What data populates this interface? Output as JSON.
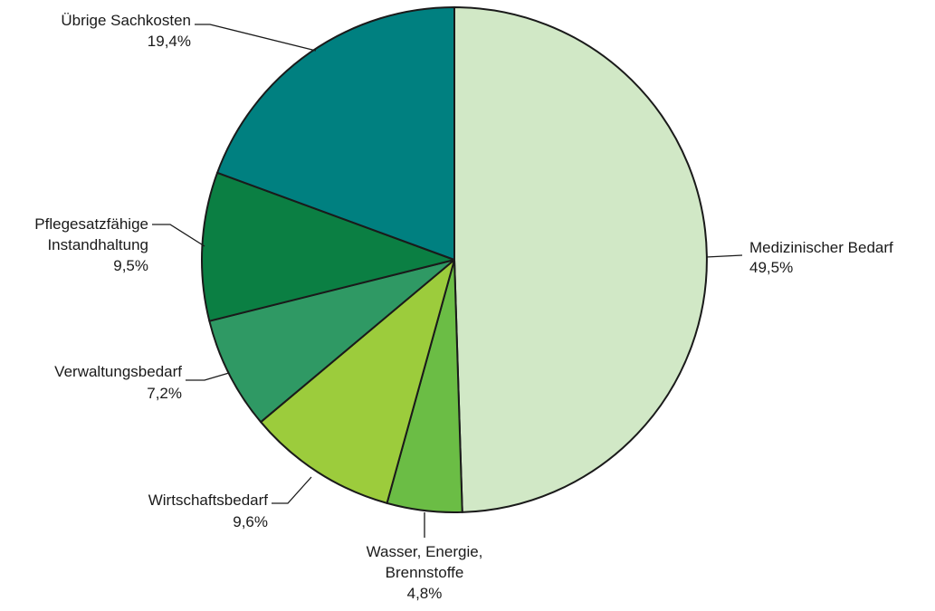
{
  "chart_data": {
    "type": "pie",
    "title": "",
    "slices": [
      {
        "label": "Medizinischer Bedarf",
        "lines": [
          "Medizinischer Bedarf"
        ],
        "value": 49.5,
        "value_label": "49,5%",
        "color": "#d1e8c6"
      },
      {
        "label": "Wasser, Energie, Brennstoffe",
        "lines": [
          "Wasser, Energie,",
          "Brennstoffe"
        ],
        "value": 4.8,
        "value_label": "4,8%",
        "color": "#6bbd45"
      },
      {
        "label": "Wirtschaftsbedarf",
        "lines": [
          "Wirtschaftsbedarf"
        ],
        "value": 9.6,
        "value_label": "9,6%",
        "color": "#9ccc3c"
      },
      {
        "label": "Verwaltungsbedarf",
        "lines": [
          "Verwaltungsbedarf"
        ],
        "value": 7.2,
        "value_label": "7,2%",
        "color": "#2f9964"
      },
      {
        "label": "Pflegesatzfähige Instandhaltung",
        "lines": [
          "Pflegesatzfähige",
          "Instandhaltung"
        ],
        "value": 9.5,
        "value_label": "9,5%",
        "color": "#0b7f43"
      },
      {
        "label": "Übrige Sachkosten",
        "lines": [
          "Übrige Sachkosten"
        ],
        "value": 19.4,
        "value_label": "19,4%",
        "color": "#008080"
      }
    ]
  }
}
